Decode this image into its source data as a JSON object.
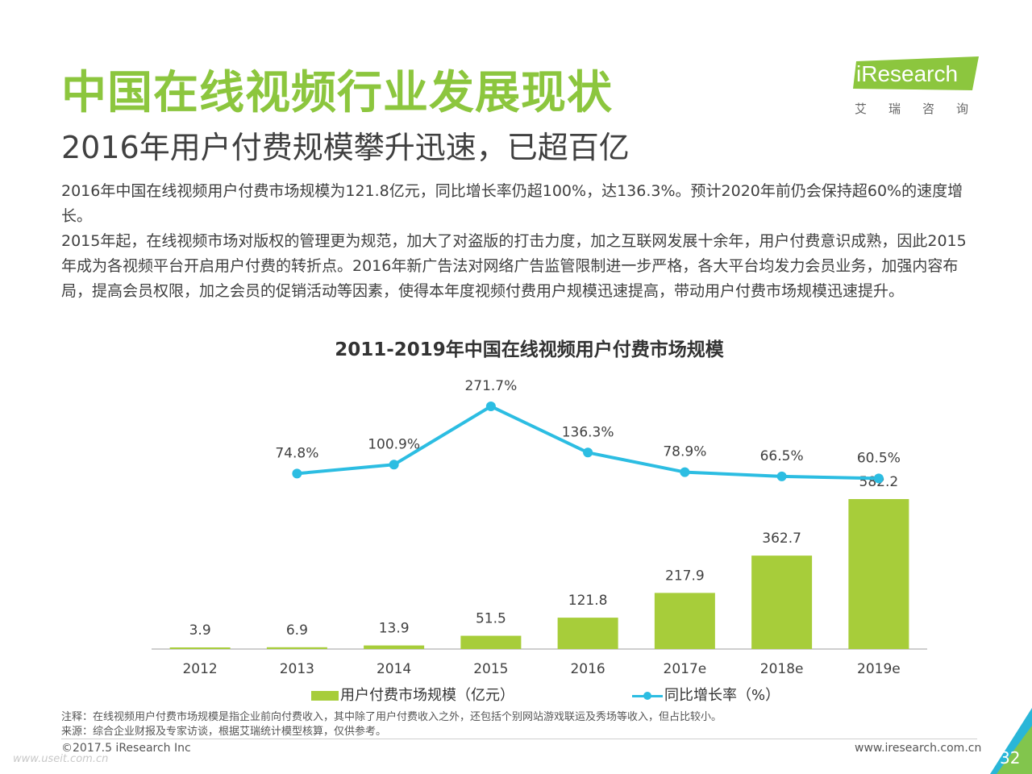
{
  "header": {
    "title": "中国在线视频行业发展现状",
    "subtitle": "2016年用户付费规模攀升迅速，已超百亿"
  },
  "logo": {
    "brand": "iResearch",
    "chinese": "艾瑞咨询"
  },
  "body": {
    "paragraph1": "2016年中国在线视频用户付费市场规模为121.8亿元，同比增长率仍超100%，达136.3%。预计2020年前仍会保持超60%的速度增长。",
    "paragraph2": "2015年起，在线视频市场对版权的管理更为规范，加大了对盗版的打击力度，加之互联网发展十余年，用户付费意识成熟，因此2015年成为各视频平台开启用户付费的转折点。2016年新广告法对网络广告监管限制进一步严格，各大平台均发力会员业务，加强内容布局，提高会员权限，加之会员的促销活动等因素，使得本年度视频付费用户规模迅速提高，带动用户付费市场规模迅速提升。"
  },
  "chart_data": {
    "type": "bar",
    "title": "2011-2019年中国在线视频用户付费市场规模",
    "categories": [
      "2012",
      "2013",
      "2014",
      "2015",
      "2016",
      "2017e",
      "2018e",
      "2019e"
    ],
    "series": [
      {
        "name": "用户付费市场规模（亿元）",
        "type": "bar",
        "values": [
          3.9,
          6.9,
          13.9,
          51.5,
          121.8,
          217.9,
          362.7,
          582.2
        ],
        "labels": [
          "3.9",
          "6.9",
          "13.9",
          "51.5",
          "121.8",
          "217.9",
          "362.7",
          "582.2"
        ],
        "color": "#a7cd3a"
      },
      {
        "name": "同比增长率（%）",
        "type": "line",
        "values": [
          null,
          74.8,
          100.9,
          271.7,
          136.3,
          78.9,
          66.5,
          60.5
        ],
        "labels": [
          null,
          "74.8%",
          "100.9%",
          "271.7%",
          "136.3%",
          "78.9%",
          "66.5%",
          "60.5%"
        ],
        "color": "#2cbde2"
      }
    ],
    "grid": false,
    "legend_position": "bottom"
  },
  "notes": {
    "note": "注释：在线视频用户付费市场规模是指企业前向付费收入，其中除了用户付费收入之外，还包括个别网站游戏联运及秀场等收入，但占比较小。",
    "source": "来源：综合企业财报及专家访谈，根据艾瑞统计模型核算，仅供参考。"
  },
  "footer": {
    "copyright": "©2017.5 iResearch Inc",
    "website": "www.iresearch.com.cn",
    "page_number": "32",
    "watermark": "www.useit.com.cn"
  },
  "colors": {
    "title_green": "#8cc63e",
    "bar_green": "#a7cd3a",
    "line_blue": "#2cbde2",
    "corner_blue": "#29b6d8",
    "corner_green": "#8cc63e"
  }
}
